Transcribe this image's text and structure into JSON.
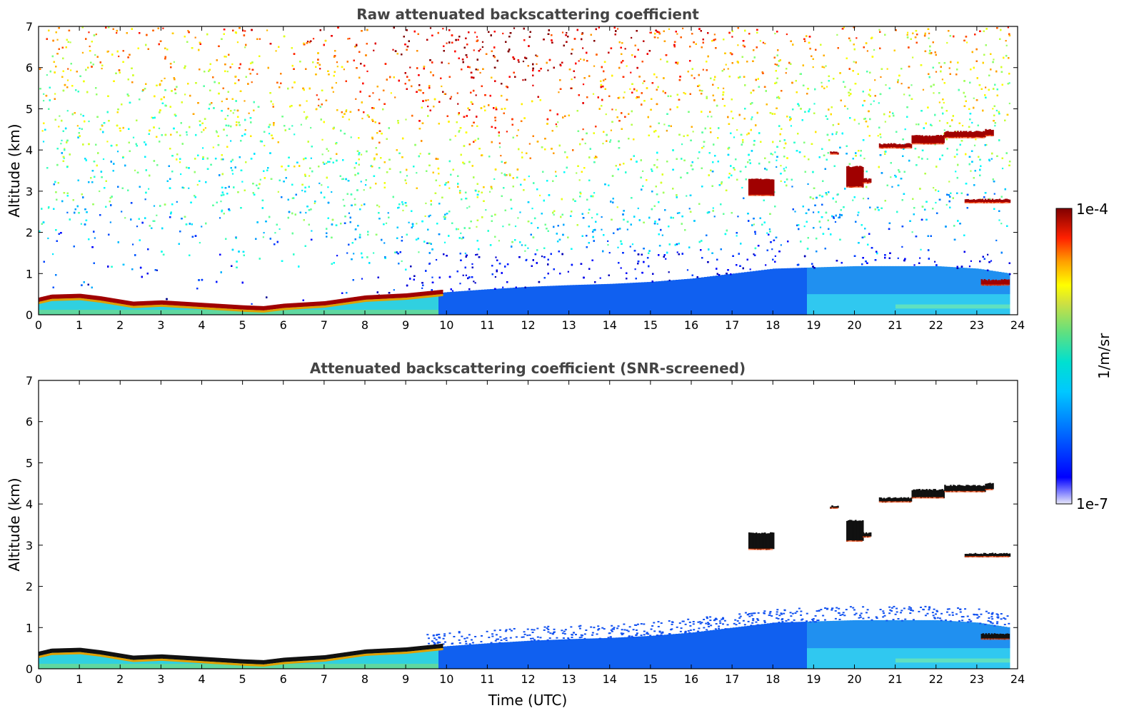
{
  "chart_data": [
    {
      "type": "heatmap",
      "title": "Raw attenuated backscattering coefficient",
      "xlabel": "",
      "ylabel": "Altitude (km)",
      "xlim": [
        0,
        24
      ],
      "ylim": [
        0,
        7
      ],
      "x_ticks": [
        "0",
        "1",
        "2",
        "3",
        "4",
        "5",
        "6",
        "7",
        "8",
        "9",
        "10",
        "11",
        "12",
        "13",
        "14",
        "15",
        "16",
        "17",
        "18",
        "19",
        "20",
        "21",
        "22",
        "23",
        "24"
      ],
      "y_ticks": [
        "0",
        "1",
        "2",
        "3",
        "4",
        "5",
        "6",
        "7"
      ],
      "noise": "heavy",
      "background": "white",
      "boundary_layer_top_km": [
        [
          0.0,
          0.35
        ],
        [
          0.3,
          0.42
        ],
        [
          1.0,
          0.44
        ],
        [
          1.5,
          0.38
        ],
        [
          2.3,
          0.25
        ],
        [
          3.0,
          0.28
        ],
        [
          4.0,
          0.22
        ],
        [
          5.0,
          0.16
        ],
        [
          5.5,
          0.14
        ],
        [
          6.0,
          0.2
        ],
        [
          7.0,
          0.26
        ],
        [
          8.0,
          0.4
        ],
        [
          9.0,
          0.45
        ],
        [
          9.7,
          0.52
        ],
        [
          10.0,
          0.55
        ],
        [
          11.0,
          0.62
        ],
        [
          12.0,
          0.68
        ],
        [
          13.0,
          0.72
        ],
        [
          14.0,
          0.75
        ],
        [
          15.0,
          0.8
        ],
        [
          16.0,
          0.88
        ],
        [
          17.0,
          1.0
        ],
        [
          18.0,
          1.12
        ],
        [
          19.0,
          1.15
        ],
        [
          20.0,
          1.18
        ],
        [
          21.0,
          1.18
        ],
        [
          22.0,
          1.18
        ],
        [
          23.0,
          1.12
        ],
        [
          23.8,
          1.0
        ]
      ],
      "clouds": [
        {
          "t_start": 0.0,
          "t_end": 10.0,
          "base_km": "boundary_layer_top",
          "thickness_km": 0.08
        },
        {
          "t_start": 17.4,
          "t_end": 18.0,
          "base_km": 2.9,
          "top_km": 3.3
        },
        {
          "t_start": 19.4,
          "t_end": 19.6,
          "base_km": 3.9,
          "top_km": 3.95
        },
        {
          "t_start": 19.8,
          "t_end": 20.2,
          "base_km": 3.1,
          "top_km": 3.6
        },
        {
          "t_start": 20.2,
          "t_end": 20.4,
          "base_km": 3.2,
          "top_km": 3.3
        },
        {
          "t_start": 20.6,
          "t_end": 21.4,
          "base_km": 4.05,
          "top_km": 4.15
        },
        {
          "t_start": 21.4,
          "t_end": 22.2,
          "base_km": 4.15,
          "top_km": 4.35
        },
        {
          "t_start": 22.2,
          "t_end": 23.2,
          "base_km": 4.3,
          "top_km": 4.45
        },
        {
          "t_start": 23.2,
          "t_end": 23.4,
          "base_km": 4.35,
          "top_km": 4.5
        },
        {
          "t_start": 22.7,
          "t_end": 23.8,
          "base_km": 2.72,
          "top_km": 2.8
        },
        {
          "t_start": 23.1,
          "t_end": 23.8,
          "base_km": 0.72,
          "top_km": 0.85
        }
      ]
    },
    {
      "type": "heatmap",
      "title": "Attenuated backscattering coefficient (SNR-screened)",
      "xlabel": "Time (UTC)",
      "ylabel": "Altitude (km)",
      "xlim": [
        0,
        24
      ],
      "ylim": [
        0,
        7
      ],
      "x_ticks": [
        "0",
        "1",
        "2",
        "3",
        "4",
        "5",
        "6",
        "7",
        "8",
        "9",
        "10",
        "11",
        "12",
        "13",
        "14",
        "15",
        "16",
        "17",
        "18",
        "19",
        "20",
        "21",
        "22",
        "23",
        "24"
      ],
      "y_ticks": [
        "0",
        "1",
        "2",
        "3",
        "4",
        "5",
        "6",
        "7"
      ],
      "noise": "screened",
      "background": "white",
      "same_boundary_layer_and_clouds_as_panel": 1
    }
  ],
  "colorbar": {
    "label": "1/m/sr",
    "min_label": "1e-7",
    "max_label": "1e-4",
    "colormap": "jet",
    "stops": [
      "#e8e8f8",
      "#0000ff",
      "#00a0ff",
      "#00e0e0",
      "#40e080",
      "#c0e040",
      "#ffff00",
      "#ff8000",
      "#ff0000",
      "#800000"
    ]
  }
}
